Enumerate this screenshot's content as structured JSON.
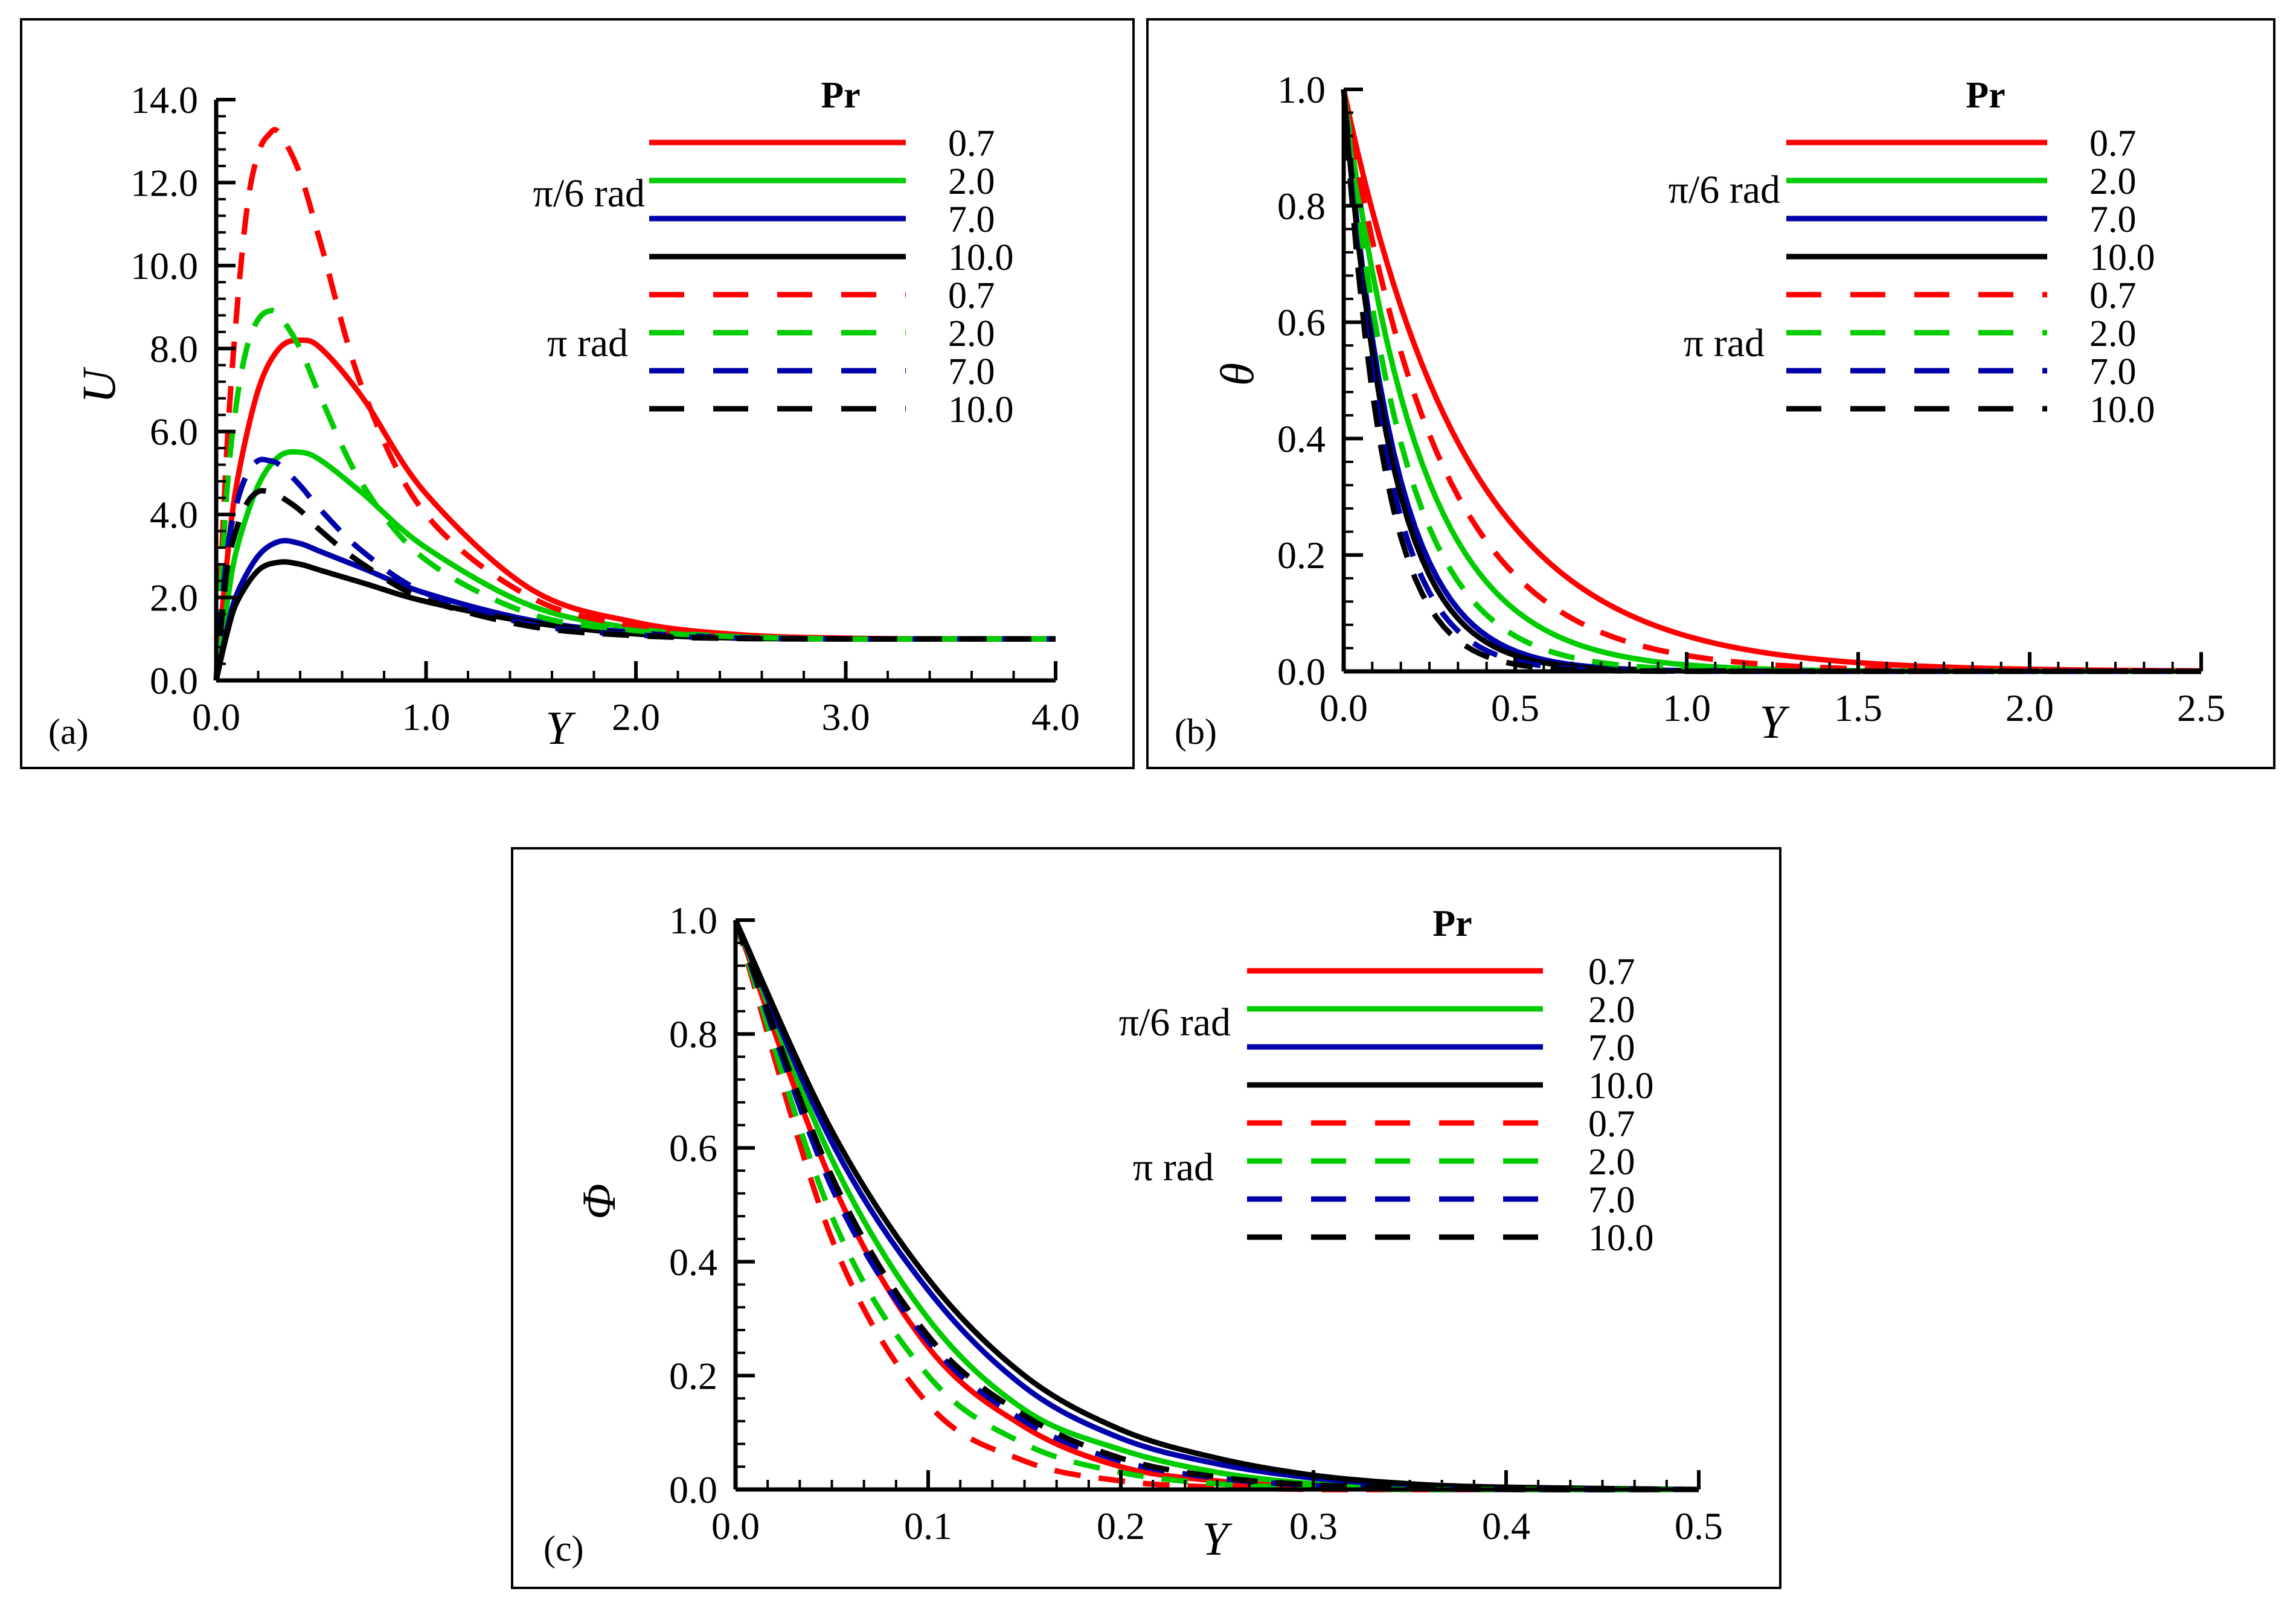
{
  "chart_data": [
    {
      "type": "line",
      "panel_label": "(a)",
      "xlabel": "Y",
      "ylabel": "U",
      "xlim": [
        0,
        4
      ],
      "ylim": [
        0,
        14
      ],
      "xticks": [
        "0.0",
        "1.0",
        "2.0",
        "3.0",
        "4.0"
      ],
      "yticks": [
        "0.0",
        "2.0",
        "4.0",
        "6.0",
        "8.0",
        "10.0",
        "12.0",
        "14.0"
      ],
      "legend_title": "Pr",
      "legend_groups": [
        "π/6 rad",
        "π rad"
      ],
      "series": [
        {
          "name": "0.7",
          "group": "π/6 rad",
          "style": "solid",
          "color": "#ff0000",
          "x": [
            0,
            0.05,
            0.1,
            0.2,
            0.3,
            0.4,
            0.5,
            0.7,
            1.0,
            1.5,
            2.0,
            2.5,
            3.0,
            3.5,
            4.0
          ],
          "y": [
            0,
            2.8,
            4.8,
            7.0,
            8.0,
            8.2,
            8.0,
            6.8,
            4.5,
            2.2,
            1.4,
            1.1,
            1.02,
            1.0,
            1.0
          ]
        },
        {
          "name": "2.0",
          "group": "π/6 rad",
          "style": "solid",
          "color": "#00cc00",
          "x": [
            0,
            0.05,
            0.1,
            0.2,
            0.3,
            0.4,
            0.5,
            0.7,
            1.0,
            1.5,
            2.0,
            2.5,
            3.0,
            3.5,
            4.0
          ],
          "y": [
            0,
            1.8,
            3.2,
            4.7,
            5.4,
            5.5,
            5.3,
            4.5,
            3.2,
            1.8,
            1.25,
            1.05,
            1.0,
            1.0,
            1.0
          ]
        },
        {
          "name": "7.0",
          "group": "π/6 rad",
          "style": "solid",
          "color": "#0000aa",
          "x": [
            0,
            0.05,
            0.1,
            0.2,
            0.3,
            0.4,
            0.5,
            0.7,
            1.0,
            1.5,
            2.0,
            2.5,
            3.0,
            3.5,
            4.0
          ],
          "y": [
            0,
            1.2,
            2.1,
            3.0,
            3.35,
            3.3,
            3.1,
            2.7,
            2.1,
            1.45,
            1.15,
            1.03,
            1.0,
            1.0,
            1.0
          ]
        },
        {
          "name": "10.0",
          "group": "π/6 rad",
          "style": "solid",
          "color": "#000000",
          "x": [
            0,
            0.05,
            0.1,
            0.2,
            0.3,
            0.4,
            0.5,
            0.7,
            1.0,
            1.5,
            2.0,
            2.5,
            3.0,
            3.5,
            4.0
          ],
          "y": [
            0,
            1.1,
            1.9,
            2.65,
            2.85,
            2.8,
            2.65,
            2.35,
            1.9,
            1.4,
            1.12,
            1.02,
            1.0,
            1.0,
            1.0
          ]
        },
        {
          "name": "0.7",
          "group": "π rad",
          "style": "dashed",
          "color": "#ff0000",
          "x": [
            0,
            0.05,
            0.1,
            0.15,
            0.2,
            0.25,
            0.3,
            0.4,
            0.5,
            0.7,
            1.0,
            1.5,
            2.0,
            2.5,
            3.0,
            3.5,
            4.0
          ],
          "y": [
            0,
            5.5,
            9.0,
            11.5,
            12.7,
            13.15,
            13.2,
            12.2,
            10.5,
            7.0,
            4.0,
            2.0,
            1.3,
            1.08,
            1.0,
            1.0,
            1.0
          ]
        },
        {
          "name": "2.0",
          "group": "π rad",
          "style": "dashed",
          "color": "#00cc00",
          "x": [
            0,
            0.05,
            0.1,
            0.15,
            0.2,
            0.25,
            0.3,
            0.4,
            0.5,
            0.7,
            1.0,
            1.5,
            2.0,
            2.5,
            3.0,
            3.5,
            4.0
          ],
          "y": [
            0,
            4.5,
            6.8,
            8.1,
            8.7,
            8.9,
            8.8,
            8.0,
            6.8,
            4.7,
            2.9,
            1.6,
            1.2,
            1.05,
            1.0,
            1.0,
            1.0
          ]
        },
        {
          "name": "7.0",
          "group": "π rad",
          "style": "dashed",
          "color": "#0000aa",
          "x": [
            0,
            0.05,
            0.1,
            0.15,
            0.2,
            0.25,
            0.3,
            0.4,
            0.5,
            0.7,
            1.0,
            1.5,
            2.0,
            2.5,
            3.0,
            3.5,
            4.0
          ],
          "y": [
            0,
            3.0,
            4.3,
            5.0,
            5.3,
            5.3,
            5.2,
            4.7,
            4.1,
            3.1,
            2.1,
            1.35,
            1.1,
            1.02,
            1.0,
            1.0,
            1.0
          ]
        },
        {
          "name": "10.0",
          "group": "π rad",
          "style": "dashed",
          "color": "#000000",
          "x": [
            0,
            0.05,
            0.1,
            0.15,
            0.2,
            0.25,
            0.3,
            0.4,
            0.5,
            0.7,
            1.0,
            1.5,
            2.0,
            2.5,
            3.0,
            3.5,
            4.0
          ],
          "y": [
            0,
            2.6,
            3.7,
            4.3,
            4.55,
            4.55,
            4.45,
            4.1,
            3.6,
            2.8,
            1.95,
            1.3,
            1.08,
            1.01,
            1.0,
            1.0,
            1.0
          ]
        }
      ]
    },
    {
      "type": "line",
      "panel_label": "(b)",
      "xlabel": "Y",
      "ylabel": "θ",
      "xlim": [
        0,
        2.5
      ],
      "ylim": [
        0,
        1.0
      ],
      "xticks": [
        "0.0",
        "0.5",
        "1.0",
        "1.5",
        "2.0",
        "2.5"
      ],
      "yticks": [
        "0.0",
        "0.2",
        "0.4",
        "0.6",
        "0.8",
        "1.0"
      ],
      "legend_title": "Pr",
      "legend_groups": [
        "π/6 rad",
        "π rad"
      ],
      "series": [
        {
          "name": "0.7",
          "group": "π/6 rad",
          "style": "solid",
          "color": "#ff0000",
          "decay": 2.8
        },
        {
          "name": "2.0",
          "group": "π/6 rad",
          "style": "solid",
          "color": "#00cc00",
          "decay": 4.5
        },
        {
          "name": "7.0",
          "group": "π/6 rad",
          "style": "solid",
          "color": "#0000aa",
          "decay": 6.7
        },
        {
          "name": "10.0",
          "group": "π/6 rad",
          "style": "solid",
          "color": "#000000",
          "decay": 7.2
        },
        {
          "name": "0.7",
          "group": "π rad",
          "style": "dashed",
          "color": "#ff0000",
          "decay": 3.6
        },
        {
          "name": "2.0",
          "group": "π rad",
          "style": "dashed",
          "color": "#00cc00",
          "decay": 5.6
        },
        {
          "name": "7.0",
          "group": "π rad",
          "style": "dashed",
          "color": "#0000aa",
          "decay": 8.0
        },
        {
          "name": "10.0",
          "group": "π rad",
          "style": "dashed",
          "color": "#000000",
          "decay": 8.8
        }
      ]
    },
    {
      "type": "line",
      "panel_label": "(c)",
      "xlabel": "Y",
      "ylabel": "Φ",
      "xlim": [
        0,
        0.5
      ],
      "ylim": [
        0,
        1.0
      ],
      "xticks": [
        "0.0",
        "0.1",
        "0.2",
        "0.3",
        "0.4",
        "0.5"
      ],
      "yticks": [
        "0.0",
        "0.2",
        "0.4",
        "0.6",
        "0.8",
        "1.0"
      ],
      "legend_title": "Pr",
      "legend_groups": [
        "π/6 rad",
        "π rad"
      ],
      "series": [
        {
          "name": "0.7",
          "group": "π/6 rad",
          "style": "solid",
          "color": "#ff0000",
          "x": [
            0,
            0.05,
            0.1,
            0.15,
            0.2,
            0.25,
            0.3,
            0.35,
            0.4,
            0.5
          ],
          "y": [
            1.0,
            0.54,
            0.25,
            0.11,
            0.04,
            0.015,
            0.005,
            0.0,
            0.0,
            0.0
          ]
        },
        {
          "name": "2.0",
          "group": "π/6 rad",
          "style": "solid",
          "color": "#00cc00",
          "x": [
            0,
            0.05,
            0.1,
            0.15,
            0.2,
            0.25,
            0.3,
            0.35,
            0.4,
            0.5
          ],
          "y": [
            1.0,
            0.58,
            0.3,
            0.14,
            0.07,
            0.03,
            0.01,
            0.004,
            0.0,
            0.0
          ]
        },
        {
          "name": "7.0",
          "group": "π/6 rad",
          "style": "solid",
          "color": "#0000aa",
          "x": [
            0,
            0.05,
            0.1,
            0.15,
            0.2,
            0.25,
            0.3,
            0.35,
            0.4,
            0.5
          ],
          "y": [
            1.0,
            0.61,
            0.35,
            0.18,
            0.09,
            0.045,
            0.02,
            0.008,
            0.003,
            0.0
          ]
        },
        {
          "name": "10.0",
          "group": "π/6 rad",
          "style": "solid",
          "color": "#000000",
          "x": [
            0,
            0.05,
            0.1,
            0.15,
            0.2,
            0.25,
            0.3,
            0.35,
            0.4,
            0.5
          ],
          "y": [
            1.0,
            0.63,
            0.37,
            0.2,
            0.105,
            0.055,
            0.025,
            0.01,
            0.004,
            0.0
          ]
        },
        {
          "name": "0.7",
          "group": "π rad",
          "style": "dashed",
          "color": "#ff0000",
          "x": [
            0,
            0.05,
            0.1,
            0.15,
            0.2,
            0.25,
            0.3,
            0.35,
            0.4,
            0.5
          ],
          "y": [
            1.0,
            0.44,
            0.15,
            0.05,
            0.015,
            0.004,
            0.0,
            0.0,
            0.0,
            0.0
          ]
        },
        {
          "name": "2.0",
          "group": "π rad",
          "style": "dashed",
          "color": "#00cc00",
          "x": [
            0,
            0.05,
            0.1,
            0.15,
            0.2,
            0.25,
            0.3,
            0.35,
            0.4,
            0.5
          ],
          "y": [
            1.0,
            0.48,
            0.2,
            0.08,
            0.03,
            0.01,
            0.003,
            0.0,
            0.0,
            0.0
          ]
        },
        {
          "name": "7.0",
          "group": "π rad",
          "style": "dashed",
          "color": "#0000aa",
          "x": [
            0,
            0.05,
            0.1,
            0.15,
            0.2,
            0.25,
            0.3,
            0.35,
            0.4,
            0.5
          ],
          "y": [
            1.0,
            0.53,
            0.26,
            0.12,
            0.05,
            0.02,
            0.007,
            0.002,
            0.0,
            0.0
          ]
        },
        {
          "name": "10.0",
          "group": "π rad",
          "style": "dashed",
          "color": "#000000",
          "x": [
            0,
            0.05,
            0.1,
            0.15,
            0.2,
            0.25,
            0.3,
            0.35,
            0.4,
            0.5
          ],
          "y": [
            1.0,
            0.55,
            0.27,
            0.13,
            0.055,
            0.022,
            0.008,
            0.003,
            0.0,
            0.0
          ]
        }
      ]
    }
  ]
}
